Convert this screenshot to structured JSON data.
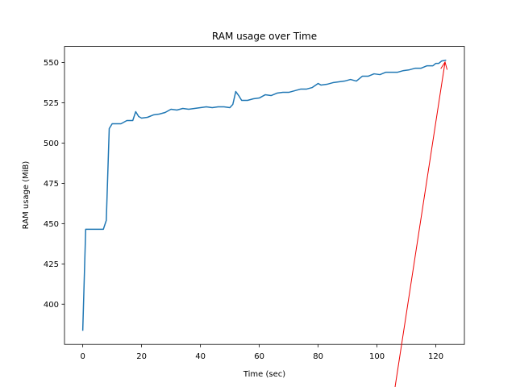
{
  "chart_data": {
    "type": "line",
    "title": "RAM usage over Time",
    "x_label": "Time (sec)",
    "y_label": "RAM usage (MiB)",
    "x": [
      0,
      1,
      2,
      4,
      6,
      7,
      8,
      9,
      10,
      11,
      13,
      15,
      17,
      18,
      19,
      20,
      22,
      24,
      26,
      28,
      30,
      32,
      34,
      36,
      38,
      40,
      42,
      44,
      46,
      48,
      50,
      51,
      52,
      53,
      54,
      56,
      58,
      60,
      62,
      64,
      66,
      68,
      70,
      72,
      74,
      76,
      78,
      80,
      81,
      83,
      85,
      87,
      89,
      91,
      93,
      95,
      97,
      99,
      101,
      103,
      105,
      107,
      109,
      111,
      113,
      115,
      117,
      119,
      120,
      121,
      122,
      123.5
    ],
    "values": [
      383.5,
      446.5,
      446.5,
      446.5,
      446.5,
      446.5,
      452,
      509,
      512,
      512,
      512,
      514,
      514,
      519.5,
      516.5,
      515.5,
      516,
      517.5,
      518,
      519,
      521,
      520.5,
      521.5,
      521,
      521.5,
      522,
      522.5,
      522,
      522.5,
      522.5,
      522,
      524,
      532,
      529.5,
      526.5,
      526.5,
      527.5,
      528,
      530,
      529.5,
      531,
      531.5,
      531.5,
      532.5,
      533.5,
      533.5,
      534.5,
      537,
      536,
      536.5,
      537.5,
      538,
      538.5,
      539.5,
      538.5,
      541.5,
      541.5,
      543,
      542.5,
      544,
      544,
      544,
      545,
      545.5,
      546.5,
      546.5,
      548,
      548,
      549.5,
      549.5,
      551,
      551.5
    ],
    "color": "#1f77b4",
    "xlim": [
      -6.2,
      129.7
    ],
    "xticks": [
      0,
      20,
      40,
      60,
      80,
      100,
      120
    ],
    "ylim": [
      375,
      560
    ],
    "yticks": [
      400,
      425,
      450,
      475,
      500,
      525,
      550
    ],
    "grid": false
  }
}
